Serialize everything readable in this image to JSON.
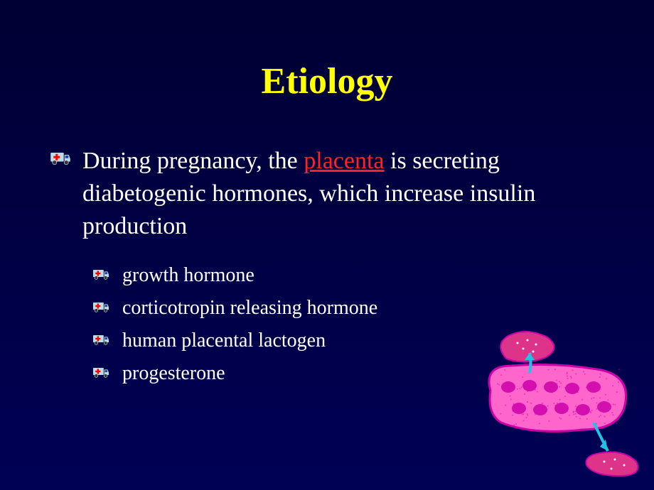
{
  "title": "Etiology",
  "main": {
    "prefix": "During pregnancy, the ",
    "link": "placenta",
    "suffix": " is secreting diabetogenic hormones, which increase insulin production"
  },
  "subs": [
    "growth hormone",
    "corticotropin releasing hormone",
    "human placental lactogen",
    "progesterone"
  ],
  "colors": {
    "title": "#ffff00",
    "text": "#ffffff",
    "link": "#ff2222",
    "icon_body": "#bcdce4",
    "icon_cross": "#ff0000",
    "icon_stroke": "#000044",
    "cell_fill": "#ff66cc",
    "cell_stroke": "#cc00aa",
    "blob_fill": "#dd3388",
    "arrow": "#1ec4e6"
  },
  "icon_size_main": 30,
  "icon_size_sub": 24,
  "fonts": {
    "title": 52,
    "main": 34,
    "sub": 28
  }
}
